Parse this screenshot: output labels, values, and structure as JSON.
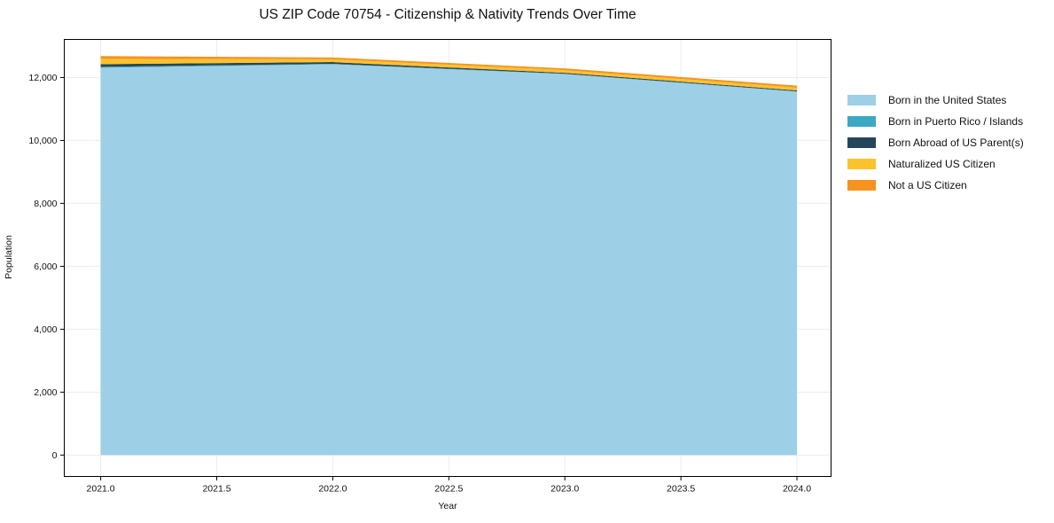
{
  "title": "US ZIP Code 70754 - Citizenship & Nativity Trends Over Time",
  "colors": {
    "background": "#ffffff",
    "grid": "#ececec",
    "spine": "#000000",
    "tick_text": "#111111"
  },
  "chart_data": {
    "type": "area",
    "stacked": true,
    "title": "US ZIP Code 70754 - Citizenship & Nativity Trends Over Time",
    "xlabel": "Year",
    "ylabel": "Population",
    "x": [
      2021,
      2022,
      2023,
      2024
    ],
    "series": [
      {
        "name": "Born in the United States",
        "color": "#9dd0e7",
        "values": [
          12310,
          12420,
          12110,
          11550
        ]
      },
      {
        "name": "Born in Puerto Rico / Islands",
        "color": "#3ca8c2",
        "values": [
          30,
          15,
          10,
          10
        ]
      },
      {
        "name": "Born Abroad of US Parent(s)",
        "color": "#25455a",
        "values": [
          85,
          55,
          30,
          30
        ]
      },
      {
        "name": "Naturalized US Citizen",
        "color": "#fcc22d",
        "values": [
          170,
          90,
          85,
          90
        ]
      },
      {
        "name": "Not a US Citizen",
        "color": "#f6921e",
        "values": [
          85,
          55,
          55,
          60
        ]
      }
    ],
    "x_ticks": [
      2021.0,
      2021.5,
      2022.0,
      2022.5,
      2023.0,
      2023.5,
      2024.0
    ],
    "x_tick_labels": [
      "2021.0",
      "2021.5",
      "2022.0",
      "2022.5",
      "2023.0",
      "2023.5",
      "2024.0"
    ],
    "y_ticks": [
      0,
      2000,
      4000,
      6000,
      8000,
      10000,
      12000
    ],
    "y_tick_labels": [
      "0",
      "2,000",
      "4,000",
      "6,000",
      "8,000",
      "10,000",
      "12,000"
    ],
    "xlim": [
      2020.843,
      2024.147
    ],
    "ylim": [
      -680,
      13210
    ],
    "grid": true,
    "legend_position": "right"
  }
}
